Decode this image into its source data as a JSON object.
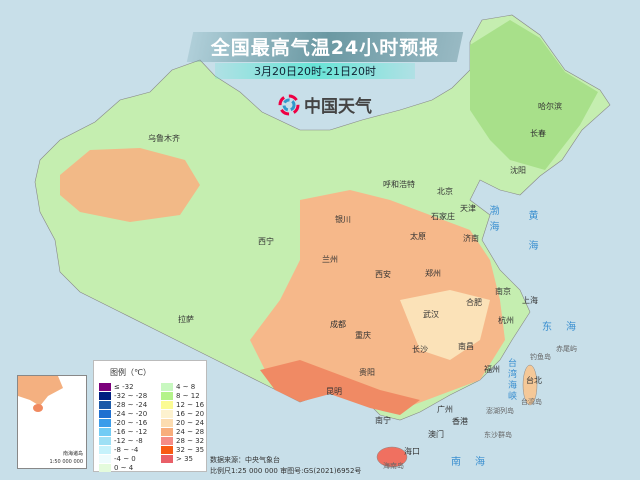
{
  "header": {
    "title": "全国最高气温24小时预报",
    "subtitle": "3月20日20时-21日20时",
    "brand": "中国天气"
  },
  "colors": {
    "background": "#c8dfe9",
    "ocean_label": "#3a8fd0"
  },
  "cities": [
    "乌鲁木齐",
    "拉萨",
    "西宁",
    "兰州",
    "银川",
    "呼和浩特",
    "北京",
    "天津",
    "石家庄",
    "太原",
    "济南",
    "郑州",
    "西安",
    "成都",
    "重庆",
    "武汉",
    "合肥",
    "南京",
    "上海",
    "杭州",
    "长沙",
    "南昌",
    "贵阳",
    "昆明",
    "南宁",
    "广州",
    "福州",
    "台北",
    "香港",
    "澳门",
    "海口",
    "哈尔滨",
    "长春",
    "沈阳"
  ],
  "seas": [
    "渤海",
    "黄海",
    "东海",
    "台湾海峡",
    "南海"
  ],
  "islands": [
    "台湾岛",
    "钓鱼岛",
    "赤尾屿",
    "澎湖列岛",
    "东沙群岛",
    "海南岛"
  ],
  "legend": {
    "title": "图例（℃）",
    "items": [
      {
        "label": "≤ -32",
        "color": "#7b007b"
      },
      {
        "label": "-32 ~ -28",
        "color": "#001e80"
      },
      {
        "label": "-28 ~ -24",
        "color": "#1c5aa8"
      },
      {
        "label": "-24 ~ -20",
        "color": "#1e6fd0"
      },
      {
        "label": "-20 ~ -16",
        "color": "#3b9cea"
      },
      {
        "label": "-16 ~ -12",
        "color": "#72ccf5"
      },
      {
        "label": "-12 ~ -8",
        "color": "#9ee0f5"
      },
      {
        "label": "-8 ~ -4",
        "color": "#c6f2fb"
      },
      {
        "label": "-4 ~ 0",
        "color": "#eefcfd"
      },
      {
        "label": "0 ~ 4",
        "color": "#e4fbdc"
      },
      {
        "label": "4 ~ 8",
        "color": "#c8f8c0"
      },
      {
        "label": "8 ~ 12",
        "color": "#b4f38a"
      },
      {
        "label": "12 ~ 16",
        "color": "#fbfb94"
      },
      {
        "label": "16 ~ 20",
        "color": "#fdf2cf"
      },
      {
        "label": "20 ~ 24",
        "color": "#fcdcb0"
      },
      {
        "label": "24 ~ 28",
        "color": "#f8ad7c"
      },
      {
        "label": "28 ~ 32",
        "color": "#f58c86"
      },
      {
        "label": "32 ~ 35",
        "color": "#f85a14"
      },
      {
        "label": "> 35",
        "color": "#e95f68"
      }
    ]
  },
  "inset": {
    "name": "南海诸岛",
    "scale": "1:50 000 000"
  },
  "footer": {
    "source": "数据来源：中央气象台",
    "scale": "比例尺1:25 000 000    审图号:GS(2021)6952号"
  }
}
